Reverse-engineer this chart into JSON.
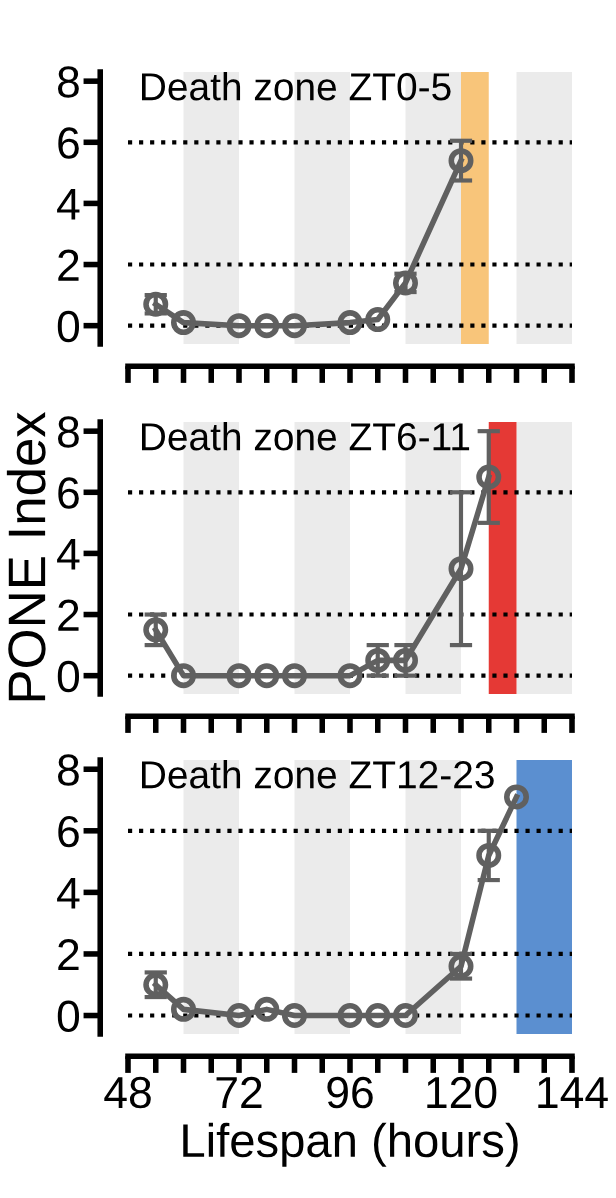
{
  "chart_data": [
    {
      "type": "line",
      "title": "Death zone ZT0-5",
      "x": [
        54,
        60,
        72,
        78,
        84,
        96,
        102,
        108,
        120
      ],
      "series": [
        {
          "color": "#606060",
          "values": [
            0.7,
            0.1,
            0,
            0,
            0,
            0.1,
            0.2,
            1.4,
            5.4
          ],
          "errors": [
            0.3,
            null,
            null,
            null,
            null,
            null,
            null,
            0.3,
            0.65
          ]
        }
      ],
      "xlim": [
        48,
        144
      ],
      "xticks": [
        {
          "value": 48,
          "label": null
        },
        {
          "value": 54,
          "label": null
        },
        {
          "value": 60,
          "label": null
        },
        {
          "value": 66,
          "label": null
        },
        {
          "value": 72,
          "label": null
        },
        {
          "value": 78,
          "label": null
        },
        {
          "value": 84,
          "label": null
        },
        {
          "value": 90,
          "label": null
        },
        {
          "value": 96,
          "label": null
        },
        {
          "value": 102,
          "label": null
        },
        {
          "value": 108,
          "label": null
        },
        {
          "value": 114,
          "label": null
        },
        {
          "value": 120,
          "label": null
        },
        {
          "value": 126,
          "label": null
        },
        {
          "value": 132,
          "label": null
        },
        {
          "value": 138,
          "label": null
        },
        {
          "value": 144,
          "label": null
        }
      ],
      "ylim": [
        -0.6,
        8.3
      ],
      "yticks": [
        0,
        2,
        4,
        6,
        8
      ],
      "tick_labels": "y",
      "marker": "circle",
      "line_style": "solid",
      "grid": false,
      "ref_lines": [
        {
          "axis": "y",
          "value": 0,
          "line_style": "dotted",
          "color": "#000000"
        },
        {
          "axis": "y",
          "value": 2,
          "line_style": "dotted",
          "color": "#000000"
        },
        {
          "axis": "y",
          "value": 6,
          "line_style": "dotted",
          "color": "#000000"
        }
      ],
      "bands": [
        {
          "axis": "x",
          "from": 60,
          "to": 72,
          "color": "#ebebeb"
        },
        {
          "axis": "x",
          "from": 84,
          "to": 96,
          "color": "#ebebeb"
        },
        {
          "axis": "x",
          "from": 108,
          "to": 120,
          "color": "#ebebeb"
        },
        {
          "axis": "x",
          "from": 132,
          "to": 144,
          "color": "#ebebeb"
        },
        {
          "axis": "x",
          "from": 120,
          "to": 126,
          "color": "#f8c57a"
        }
      ]
    },
    {
      "type": "line",
      "title": "Death zone ZT6-11",
      "ylabel": "PONE Index",
      "x": [
        54,
        60,
        72,
        78,
        84,
        96,
        102,
        108,
        120,
        126
      ],
      "series": [
        {
          "color": "#606060",
          "values": [
            1.5,
            0,
            0,
            0,
            0,
            0,
            0.5,
            0.5,
            3.5,
            6.5
          ],
          "errors": [
            0.5,
            null,
            null,
            null,
            null,
            null,
            0.5,
            0.5,
            2.5,
            1.5
          ]
        }
      ],
      "xlim": [
        48,
        144
      ],
      "xticks": [
        {
          "value": 48,
          "label": null
        },
        {
          "value": 54,
          "label": null
        },
        {
          "value": 60,
          "label": null
        },
        {
          "value": 66,
          "label": null
        },
        {
          "value": 72,
          "label": null
        },
        {
          "value": 78,
          "label": null
        },
        {
          "value": 84,
          "label": null
        },
        {
          "value": 90,
          "label": null
        },
        {
          "value": 96,
          "label": null
        },
        {
          "value": 102,
          "label": null
        },
        {
          "value": 108,
          "label": null
        },
        {
          "value": 114,
          "label": null
        },
        {
          "value": 120,
          "label": null
        },
        {
          "value": 126,
          "label": null
        },
        {
          "value": 132,
          "label": null
        },
        {
          "value": 138,
          "label": null
        },
        {
          "value": 144,
          "label": null
        }
      ],
      "ylim": [
        -0.6,
        8.3
      ],
      "yticks": [
        0,
        2,
        4,
        6,
        8
      ],
      "tick_labels": "y",
      "marker": "circle",
      "line_style": "solid",
      "grid": false,
      "ref_lines": [
        {
          "axis": "y",
          "value": 0,
          "line_style": "dotted",
          "color": "#000000"
        },
        {
          "axis": "y",
          "value": 2,
          "line_style": "dotted",
          "color": "#000000"
        },
        {
          "axis": "y",
          "value": 6,
          "line_style": "dotted",
          "color": "#000000"
        }
      ],
      "bands": [
        {
          "axis": "x",
          "from": 60,
          "to": 72,
          "color": "#ebebeb"
        },
        {
          "axis": "x",
          "from": 84,
          "to": 96,
          "color": "#ebebeb"
        },
        {
          "axis": "x",
          "from": 108,
          "to": 120,
          "color": "#ebebeb"
        },
        {
          "axis": "x",
          "from": 132,
          "to": 144,
          "color": "#ebebeb"
        },
        {
          "axis": "x",
          "from": 126,
          "to": 132,
          "color": "#e53935"
        }
      ]
    },
    {
      "type": "line",
      "title": "Death zone ZT12-23",
      "xlabel": "Lifespan (hours)",
      "x": [
        54,
        60,
        72,
        78,
        84,
        96,
        102,
        108,
        120,
        126,
        132
      ],
      "series": [
        {
          "color": "#606060",
          "values": [
            1.0,
            0.2,
            0,
            0.2,
            0,
            0,
            0,
            0,
            1.6,
            5.2,
            7.1
          ],
          "errors": [
            0.4,
            null,
            null,
            null,
            null,
            null,
            null,
            null,
            0.4,
            0.8,
            null
          ]
        }
      ],
      "xlim": [
        48,
        144
      ],
      "xticks": [
        48,
        {
          "value": 54,
          "label": null
        },
        {
          "value": 60,
          "label": null
        },
        {
          "value": 66,
          "label": null
        },
        72,
        {
          "value": 78,
          "label": null
        },
        {
          "value": 84,
          "label": null
        },
        {
          "value": 90,
          "label": null
        },
        96,
        {
          "value": 102,
          "label": null
        },
        {
          "value": 108,
          "label": null
        },
        {
          "value": 114,
          "label": null
        },
        120,
        {
          "value": 126,
          "label": null
        },
        {
          "value": 132,
          "label": null
        },
        {
          "value": 138,
          "label": null
        },
        144
      ],
      "ylim": [
        -0.6,
        8.3
      ],
      "yticks": [
        0,
        2,
        4,
        6,
        8
      ],
      "marker": "circle",
      "line_style": "solid",
      "grid": false,
      "ref_lines": [
        {
          "axis": "y",
          "value": 0,
          "line_style": "dotted",
          "color": "#000000"
        },
        {
          "axis": "y",
          "value": 2,
          "line_style": "dotted",
          "color": "#000000"
        },
        {
          "axis": "y",
          "value": 6,
          "line_style": "dotted",
          "color": "#000000"
        }
      ],
      "bands": [
        {
          "axis": "x",
          "from": 60,
          "to": 72,
          "color": "#ebebeb"
        },
        {
          "axis": "x",
          "from": 84,
          "to": 96,
          "color": "#ebebeb"
        },
        {
          "axis": "x",
          "from": 108,
          "to": 120,
          "color": "#ebebeb"
        },
        {
          "axis": "x",
          "from": 132,
          "to": 144,
          "color": "#5b8fd0"
        }
      ]
    }
  ]
}
